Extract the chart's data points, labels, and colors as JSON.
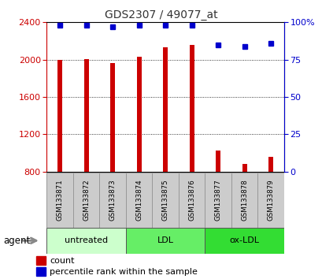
{
  "title": "GDS2307 / 49077_at",
  "samples": [
    "GSM133871",
    "GSM133872",
    "GSM133873",
    "GSM133874",
    "GSM133875",
    "GSM133876",
    "GSM133877",
    "GSM133878",
    "GSM133879"
  ],
  "counts": [
    2000,
    2005,
    1965,
    2030,
    2135,
    2155,
    1025,
    885,
    960
  ],
  "percentiles": [
    98,
    98,
    97,
    98,
    98,
    98,
    85,
    84,
    86
  ],
  "ylim_left": [
    800,
    2400
  ],
  "ylim_right": [
    0,
    100
  ],
  "yticks_left": [
    800,
    1200,
    1600,
    2000,
    2400
  ],
  "yticks_right": [
    0,
    25,
    50,
    75,
    100
  ],
  "bar_color": "#cc0000",
  "dot_color": "#0000cc",
  "groups": [
    {
      "label": "untreated",
      "start": 0,
      "end": 3,
      "color": "#ccffcc"
    },
    {
      "label": "LDL",
      "start": 3,
      "end": 6,
      "color": "#66ee66"
    },
    {
      "label": "ox-LDL",
      "start": 6,
      "end": 9,
      "color": "#33dd33"
    }
  ],
  "agent_label": "agent",
  "legend_count_label": "count",
  "legend_pct_label": "percentile rank within the sample",
  "background_color": "#ffffff",
  "left_axis_color": "#cc0000",
  "right_axis_color": "#0000cc"
}
